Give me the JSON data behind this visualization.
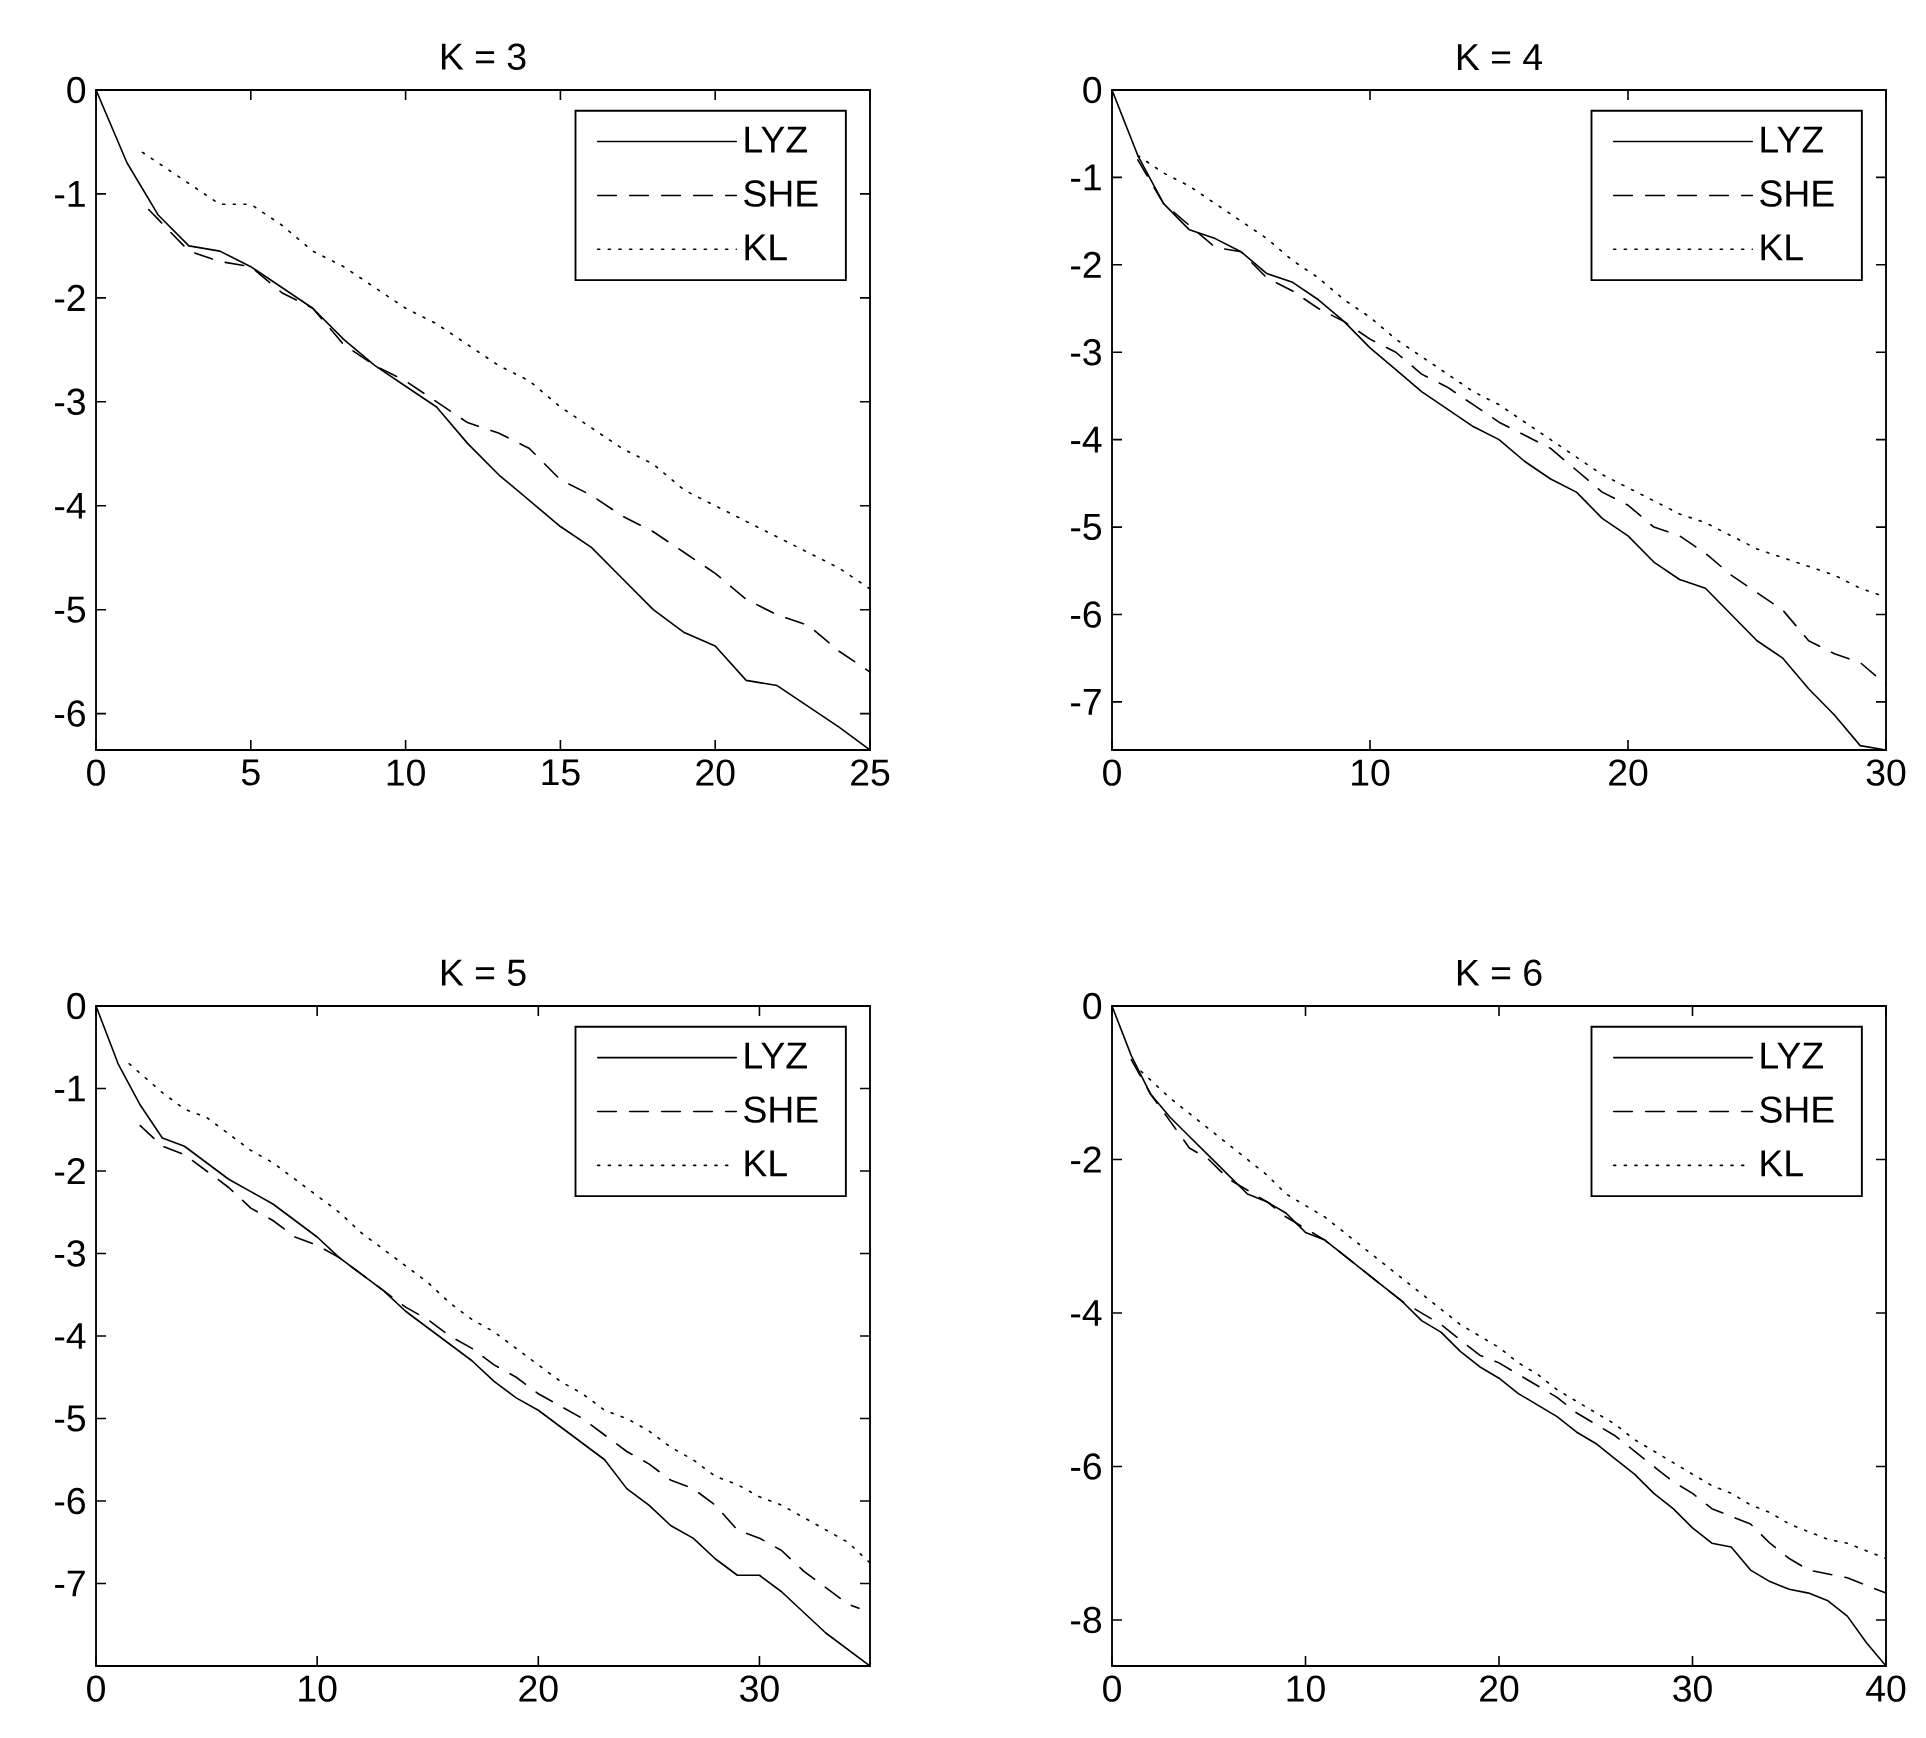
{
  "chart_data": [
    {
      "type": "line",
      "title": "K = 3",
      "legend": "top right",
      "xlim": [
        0,
        25
      ],
      "ylim": [
        -6.35,
        0
      ],
      "xticks": [
        0,
        5,
        10,
        15,
        20,
        25
      ],
      "yticks": [
        -6,
        -5,
        -4,
        -3,
        -2,
        -1,
        0
      ],
      "series": [
        {
          "name": "LYZ",
          "color": "#000000",
          "line_style": "solid",
          "x": [
            0,
            1,
            2,
            3,
            4,
            5,
            6,
            7,
            8,
            9,
            10,
            11,
            12,
            13,
            14,
            15,
            16,
            17,
            18,
            19,
            20,
            21,
            22,
            23,
            24,
            25
          ],
          "values": [
            0,
            -0.7,
            -1.2,
            -1.5,
            -1.55,
            -1.7,
            -1.9,
            -2.1,
            -2.4,
            -2.65,
            -2.85,
            -3.05,
            -3.4,
            -3.7,
            -3.95,
            -4.2,
            -4.4,
            -4.7,
            -5.0,
            -5.22,
            -5.35,
            -5.68,
            -5.73,
            -5.93,
            -6.13,
            -6.35
          ]
        },
        {
          "name": "SHE",
          "color": "#000000",
          "line_style": "dashed",
          "x": [
            1.7,
            3,
            4,
            5,
            6,
            7,
            8,
            9,
            10,
            11,
            12,
            13,
            14,
            15,
            16,
            17,
            18,
            19,
            20,
            21,
            22,
            23,
            24,
            25
          ],
          "values": [
            -1.15,
            -1.55,
            -1.65,
            -1.7,
            -1.95,
            -2.1,
            -2.45,
            -2.65,
            -2.8,
            -3.0,
            -3.2,
            -3.3,
            -3.45,
            -3.75,
            -3.9,
            -4.1,
            -4.25,
            -4.45,
            -4.65,
            -4.9,
            -5.05,
            -5.15,
            -5.4,
            -5.6
          ]
        },
        {
          "name": "KL",
          "color": "#000000",
          "line_style": "dotted",
          "x": [
            1.5,
            3,
            4,
            5,
            6,
            7,
            8,
            9,
            10,
            11,
            12,
            13,
            14,
            15,
            16,
            17,
            18,
            19,
            20,
            21,
            22,
            23,
            24,
            25
          ],
          "values": [
            -0.6,
            -0.9,
            -1.1,
            -1.1,
            -1.3,
            -1.55,
            -1.7,
            -1.9,
            -2.1,
            -2.25,
            -2.45,
            -2.65,
            -2.8,
            -3.05,
            -3.25,
            -3.45,
            -3.6,
            -3.85,
            -4.0,
            -4.15,
            -4.3,
            -4.45,
            -4.6,
            -4.8
          ]
        }
      ]
    },
    {
      "type": "line",
      "title": "K = 4",
      "legend": "top right",
      "xlim": [
        0,
        30
      ],
      "ylim": [
        -7.55,
        0
      ],
      "xticks": [
        0,
        10,
        20,
        30
      ],
      "yticks": [
        -7,
        -6,
        -5,
        -4,
        -3,
        -2,
        -1,
        0
      ],
      "series": [
        {
          "name": "LYZ",
          "color": "#000000",
          "line_style": "solid",
          "x": [
            0,
            1,
            2,
            3,
            4,
            5,
            6,
            7,
            8,
            9,
            10,
            11,
            12,
            13,
            14,
            15,
            16,
            17,
            18,
            19,
            20,
            21,
            22,
            23,
            24,
            25,
            26,
            27,
            28,
            29,
            30
          ],
          "values": [
            0,
            -0.75,
            -1.3,
            -1.6,
            -1.7,
            -1.85,
            -2.1,
            -2.2,
            -2.4,
            -2.65,
            -2.95,
            -3.2,
            -3.45,
            -3.65,
            -3.85,
            -4.0,
            -4.25,
            -4.45,
            -4.6,
            -4.9,
            -5.1,
            -5.4,
            -5.6,
            -5.7,
            -6.0,
            -6.3,
            -6.5,
            -6.85,
            -7.15,
            -7.5,
            -7.55
          ]
        },
        {
          "name": "SHE",
          "color": "#000000",
          "line_style": "dashed",
          "x": [
            1,
            2,
            3,
            4,
            5,
            6,
            7,
            8,
            9,
            10,
            11,
            12,
            13,
            14,
            15,
            16,
            17,
            18,
            19,
            20,
            21,
            22,
            23,
            24,
            25,
            26,
            27,
            28,
            29,
            30
          ],
          "values": [
            -0.8,
            -1.3,
            -1.55,
            -1.8,
            -1.85,
            -2.15,
            -2.3,
            -2.5,
            -2.65,
            -2.85,
            -3.0,
            -3.25,
            -3.4,
            -3.6,
            -3.8,
            -3.95,
            -4.1,
            -4.35,
            -4.6,
            -4.75,
            -5.0,
            -5.1,
            -5.3,
            -5.55,
            -5.75,
            -5.95,
            -6.3,
            -6.45,
            -6.55,
            -6.8
          ]
        },
        {
          "name": "KL",
          "color": "#000000",
          "line_style": "dotted",
          "x": [
            1,
            2,
            3,
            4,
            5,
            6,
            7,
            8,
            9,
            10,
            11,
            12,
            13,
            14,
            15,
            16,
            17,
            18,
            19,
            20,
            21,
            22,
            23,
            24,
            25,
            26,
            27,
            28,
            29,
            30
          ],
          "values": [
            -0.75,
            -0.95,
            -1.1,
            -1.3,
            -1.5,
            -1.7,
            -1.95,
            -2.15,
            -2.4,
            -2.6,
            -2.85,
            -3.05,
            -3.25,
            -3.45,
            -3.6,
            -3.8,
            -4.0,
            -4.2,
            -4.4,
            -4.55,
            -4.7,
            -4.85,
            -4.95,
            -5.1,
            -5.25,
            -5.35,
            -5.45,
            -5.55,
            -5.7,
            -5.8
          ]
        }
      ]
    },
    {
      "type": "line",
      "title": "K = 5",
      "legend": "top right",
      "xlim": [
        0,
        35
      ],
      "ylim": [
        -8,
        0
      ],
      "xticks": [
        0,
        10,
        20,
        30
      ],
      "yticks": [
        -7,
        -6,
        -5,
        -4,
        -3,
        -2,
        -1,
        0
      ],
      "series": [
        {
          "name": "LYZ",
          "color": "#000000",
          "line_style": "solid",
          "x": [
            0,
            1,
            2,
            3,
            4,
            5,
            6,
            7,
            8,
            9,
            10,
            11,
            12,
            13,
            14,
            15,
            16,
            17,
            18,
            19,
            20,
            21,
            22,
            23,
            24,
            25,
            26,
            27,
            28,
            29,
            30,
            31,
            32,
            33,
            34,
            35
          ],
          "values": [
            0,
            -0.7,
            -1.2,
            -1.6,
            -1.7,
            -1.9,
            -2.1,
            -2.25,
            -2.4,
            -2.6,
            -2.8,
            -3.05,
            -3.25,
            -3.45,
            -3.7,
            -3.9,
            -4.1,
            -4.3,
            -4.55,
            -4.75,
            -4.9,
            -5.1,
            -5.3,
            -5.5,
            -5.85,
            -6.05,
            -6.3,
            -6.45,
            -6.7,
            -6.9,
            -6.9,
            -7.1,
            -7.35,
            -7.6,
            -7.8,
            -8.0
          ]
        },
        {
          "name": "SHE",
          "color": "#000000",
          "line_style": "dashed",
          "x": [
            2,
            3,
            4,
            5,
            6,
            7,
            8,
            9,
            10,
            11,
            12,
            13,
            14,
            15,
            16,
            17,
            18,
            19,
            20,
            21,
            22,
            23,
            24,
            25,
            26,
            27,
            28,
            29,
            30,
            31,
            32,
            33,
            34,
            34.5
          ],
          "values": [
            -1.45,
            -1.7,
            -1.8,
            -2.0,
            -2.2,
            -2.45,
            -2.6,
            -2.8,
            -2.9,
            -3.05,
            -3.25,
            -3.45,
            -3.65,
            -3.8,
            -4.0,
            -4.15,
            -4.35,
            -4.5,
            -4.7,
            -4.85,
            -5.0,
            -5.2,
            -5.4,
            -5.55,
            -5.75,
            -5.85,
            -6.05,
            -6.35,
            -6.45,
            -6.6,
            -6.85,
            -7.05,
            -7.25,
            -7.3
          ]
        },
        {
          "name": "KL",
          "color": "#000000",
          "line_style": "dotted",
          "x": [
            1.5,
            3,
            4,
            5,
            6,
            7,
            8,
            9,
            10,
            11,
            12,
            13,
            14,
            15,
            16,
            17,
            18,
            19,
            20,
            21,
            22,
            23,
            24,
            25,
            26,
            27,
            28,
            29,
            30,
            31,
            32,
            33,
            34,
            35
          ],
          "values": [
            -0.7,
            -1.05,
            -1.25,
            -1.35,
            -1.55,
            -1.75,
            -1.9,
            -2.1,
            -2.3,
            -2.5,
            -2.75,
            -2.95,
            -3.15,
            -3.35,
            -3.6,
            -3.8,
            -3.95,
            -4.15,
            -4.35,
            -4.55,
            -4.7,
            -4.9,
            -5.0,
            -5.15,
            -5.35,
            -5.5,
            -5.7,
            -5.8,
            -5.95,
            -6.05,
            -6.2,
            -6.35,
            -6.5,
            -6.75
          ]
        }
      ]
    },
    {
      "type": "line",
      "title": "K = 6",
      "legend": "top right",
      "xlim": [
        0,
        40
      ],
      "ylim": [
        -8.6,
        0
      ],
      "xticks": [
        0,
        10,
        20,
        30,
        40
      ],
      "yticks": [
        -8,
        -6,
        -4,
        -2,
        0
      ],
      "series": [
        {
          "name": "LYZ",
          "color": "#000000",
          "line_style": "solid",
          "x": [
            0,
            1,
            2,
            3,
            4,
            5,
            6,
            7,
            8,
            9,
            10,
            11,
            12,
            13,
            14,
            15,
            16,
            17,
            18,
            19,
            20,
            21,
            22,
            23,
            24,
            25,
            26,
            27,
            28,
            29,
            30,
            31,
            32,
            33,
            34,
            35,
            36,
            37,
            38,
            39,
            40
          ],
          "values": [
            0,
            -0.65,
            -1.15,
            -1.45,
            -1.7,
            -1.95,
            -2.2,
            -2.45,
            -2.55,
            -2.7,
            -2.95,
            -3.05,
            -3.25,
            -3.45,
            -3.65,
            -3.85,
            -4.1,
            -4.25,
            -4.5,
            -4.7,
            -4.85,
            -5.05,
            -5.2,
            -5.35,
            -5.55,
            -5.7,
            -5.9,
            -6.1,
            -6.35,
            -6.55,
            -6.8,
            -7.0,
            -7.05,
            -7.35,
            -7.5,
            -7.6,
            -7.65,
            -7.75,
            -7.95,
            -8.3,
            -8.6
          ]
        },
        {
          "name": "SHE",
          "color": "#000000",
          "line_style": "dashed",
          "x": [
            1,
            2,
            3,
            4,
            5,
            6,
            7,
            8,
            9,
            10,
            11,
            12,
            13,
            14,
            15,
            16,
            17,
            18,
            19,
            20,
            21,
            22,
            23,
            24,
            25,
            26,
            27,
            28,
            29,
            30,
            31,
            32,
            33,
            34,
            35,
            36,
            37,
            38,
            39,
            40
          ],
          "values": [
            -0.7,
            -1.15,
            -1.5,
            -1.85,
            -2.0,
            -2.25,
            -2.4,
            -2.55,
            -2.75,
            -2.9,
            -3.05,
            -3.25,
            -3.45,
            -3.65,
            -3.85,
            -4.0,
            -4.15,
            -4.35,
            -4.55,
            -4.65,
            -4.8,
            -4.95,
            -5.1,
            -5.3,
            -5.45,
            -5.6,
            -5.8,
            -6.0,
            -6.2,
            -6.35,
            -6.55,
            -6.65,
            -6.75,
            -7.0,
            -7.2,
            -7.35,
            -7.4,
            -7.45,
            -7.55,
            -7.65
          ]
        },
        {
          "name": "KL",
          "color": "#000000",
          "line_style": "dotted",
          "x": [
            1.5,
            3,
            4,
            5,
            6,
            7,
            8,
            9,
            10,
            11,
            12,
            13,
            14,
            15,
            16,
            17,
            18,
            19,
            20,
            21,
            22,
            23,
            24,
            25,
            26,
            27,
            28,
            29,
            30,
            31,
            32,
            33,
            34,
            35,
            36,
            37,
            38,
            39,
            40
          ],
          "values": [
            -0.85,
            -1.2,
            -1.4,
            -1.6,
            -1.8,
            -2.0,
            -2.2,
            -2.45,
            -2.6,
            -2.75,
            -2.95,
            -3.15,
            -3.35,
            -3.55,
            -3.75,
            -3.95,
            -4.15,
            -4.3,
            -4.45,
            -4.65,
            -4.8,
            -5.0,
            -5.15,
            -5.3,
            -5.45,
            -5.65,
            -5.8,
            -5.95,
            -6.1,
            -6.25,
            -6.35,
            -6.5,
            -6.6,
            -6.75,
            -6.85,
            -6.95,
            -7.0,
            -7.1,
            -7.2
          ]
        }
      ]
    }
  ]
}
